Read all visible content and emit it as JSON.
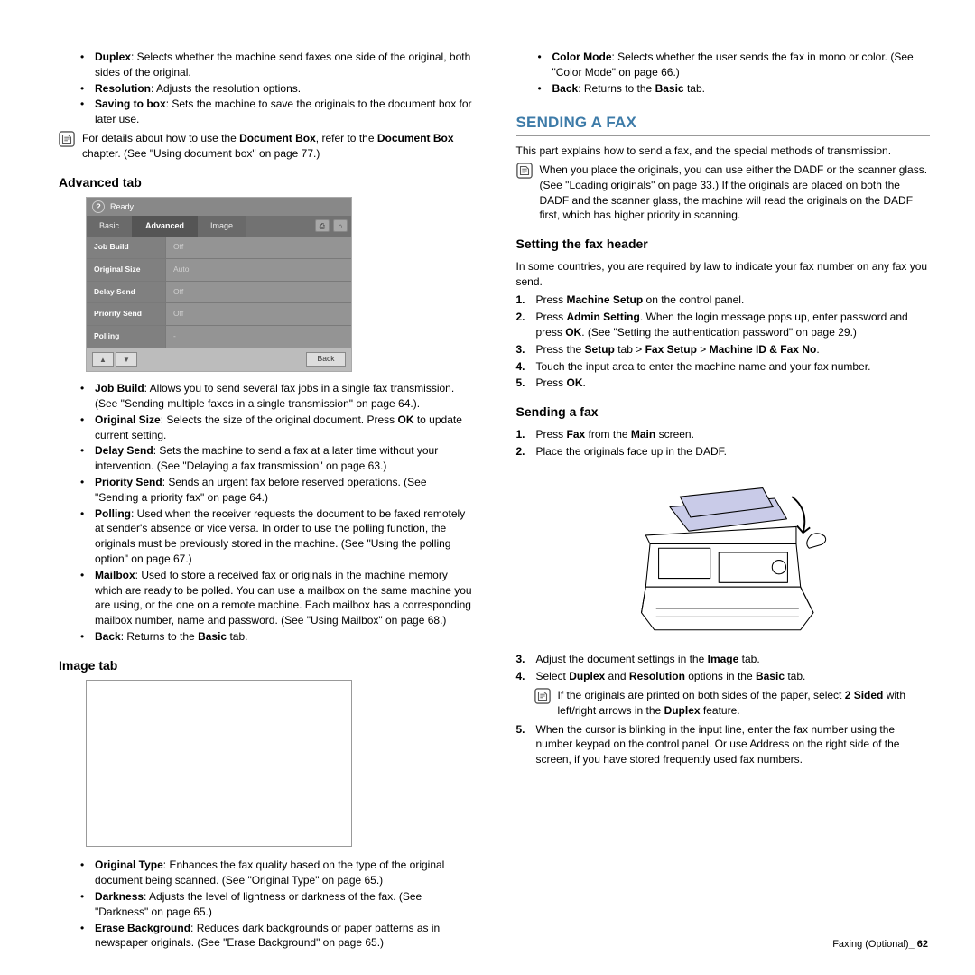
{
  "left": {
    "top_bullets": [
      {
        "b": "Duplex",
        "t": ": Selects whether the machine send faxes one side of the original, both sides of the original."
      },
      {
        "b": "Resolution",
        "t": ": Adjusts the resolution options."
      },
      {
        "b": "Saving to box",
        "t": ": Sets the machine to save the originals to the document box for later use."
      }
    ],
    "top_note": "For details about how to use the <b>Document Box</b>, refer to the <b>Document Box</b> chapter. (See \"Using document box\" on page 77.)",
    "adv_heading": "Advanced tab",
    "adv_ready": "Ready",
    "adv_tabs": [
      "Basic",
      "Advanced",
      "Image"
    ],
    "adv_rows": [
      {
        "l": "Job Build",
        "v": "Off"
      },
      {
        "l": "Original Size",
        "v": "Auto"
      },
      {
        "l": "Delay Send",
        "v": "Off"
      },
      {
        "l": "Priority Send",
        "v": "Off"
      },
      {
        "l": "Polling",
        "v": "-"
      }
    ],
    "adv_back": "Back",
    "adv_bullets": [
      {
        "b": "Job Build",
        "t": ": Allows you to send several fax jobs in a single fax transmission. (See \"Sending multiple faxes in a single transmission\" on page 64.)."
      },
      {
        "b": "Original Size",
        "t": ": Selects the size of the original document. Press <b>OK</b> to update current setting."
      },
      {
        "b": "Delay Send",
        "t": ": Sets the machine to send a fax at a later time without your intervention. (See \"Delaying a fax transmission\" on page 63.)"
      },
      {
        "b": "Priority Send",
        "t": ": Sends an urgent fax before reserved operations. (See \"Sending a priority fax\" on page 64.)"
      },
      {
        "b": "Polling",
        "t": ": Used when the receiver requests the document to be faxed remotely at sender's absence or vice versa. In order to use the polling function, the originals must be previously stored in the machine. (See \"Using the polling option\" on page 67.)"
      },
      {
        "b": "Mailbox",
        "t": ": Used to store a received fax or originals in the machine memory which are ready to be polled. You can use a mailbox on the same machine you are using, or the one on a remote machine. Each mailbox has a corresponding mailbox number, name and password. (See \"Using Mailbox\" on page 68.)"
      },
      {
        "b": "Back",
        "t": ": Returns to the <b>Basic</b> tab."
      }
    ],
    "img_heading": "Image tab",
    "img_bullets": [
      {
        "b": "Original Type",
        "t": ": Enhances the fax quality based on the type of the original document being scanned. (See \"Original Type\" on page 65.)"
      },
      {
        "b": "Darkness",
        "t": ": Adjusts the level of lightness or darkness of the fax. (See \"Darkness\" on page 65.)"
      },
      {
        "b": "Erase Background",
        "t": ": Reduces dark backgrounds or paper patterns as in newspaper originals. (See \"Erase Background\" on page 65.)"
      }
    ]
  },
  "right": {
    "top_bullets": [
      {
        "b": "Color Mode",
        "t": ": Selects whether the user sends the fax in mono or color. (See \"Color Mode\" on page 66.)"
      },
      {
        "b": "Back",
        "t": ": Returns to the <b>Basic</b> tab."
      }
    ],
    "sec_heading": "SENDING A FAX",
    "intro": "This part explains how to send a fax, and the special methods of transmission.",
    "note": "When you place the originals, you can use either the DADF or the scanner glass. (See \"Loading originals\" on page 33.) If the originals are placed on both the DADF and the scanner glass, the machine will read the originals on the DADF first, which has higher priority in scanning.",
    "sub1": "Setting the fax header",
    "sub1_intro": "In some countries, you are required by law to indicate your fax number on any fax you send.",
    "sub1_steps_a": "Press <b>Machine Setup</b> on the control panel.",
    "sub1_steps_b": "Press <b>Admin Setting</b>. When the login message pops up, enter password and press <b>OK</b>. (See \"Setting the authentication password\" on page 29.)",
    "sub1_steps_c": "Press the <b>Setup</b> tab > <b>Fax Setup</b> > <b>Machine ID & Fax No</b>.",
    "sub1_steps_d": "Touch the input area to enter the machine name and your fax number.",
    "sub1_steps_e": "Press <b>OK</b>.",
    "sub2": "Sending a fax",
    "sub2_step1": "Press <b>Fax</b> from the <b>Main</b> screen.",
    "sub2_step2": "Place the originals face up in the DADF.",
    "sub2_step3": "Adjust the document settings in the <b>Image</b> tab.",
    "sub2_step4": "Select <b>Duplex</b> and <b>Resolution</b> options in the <b>Basic</b> tab.",
    "sub2_note": "If the originals are printed on both sides of the paper, select <b>2 Sided</b> with left/right arrows in the <b>Duplex</b> feature.",
    "sub2_step5": "When the cursor is blinking in the input line, enter the fax number using the number keypad on the control panel. Or use Address on the right side of the screen, if you have stored frequently used fax numbers."
  },
  "footer_text": "Faxing (Optional)",
  "footer_page": "62"
}
